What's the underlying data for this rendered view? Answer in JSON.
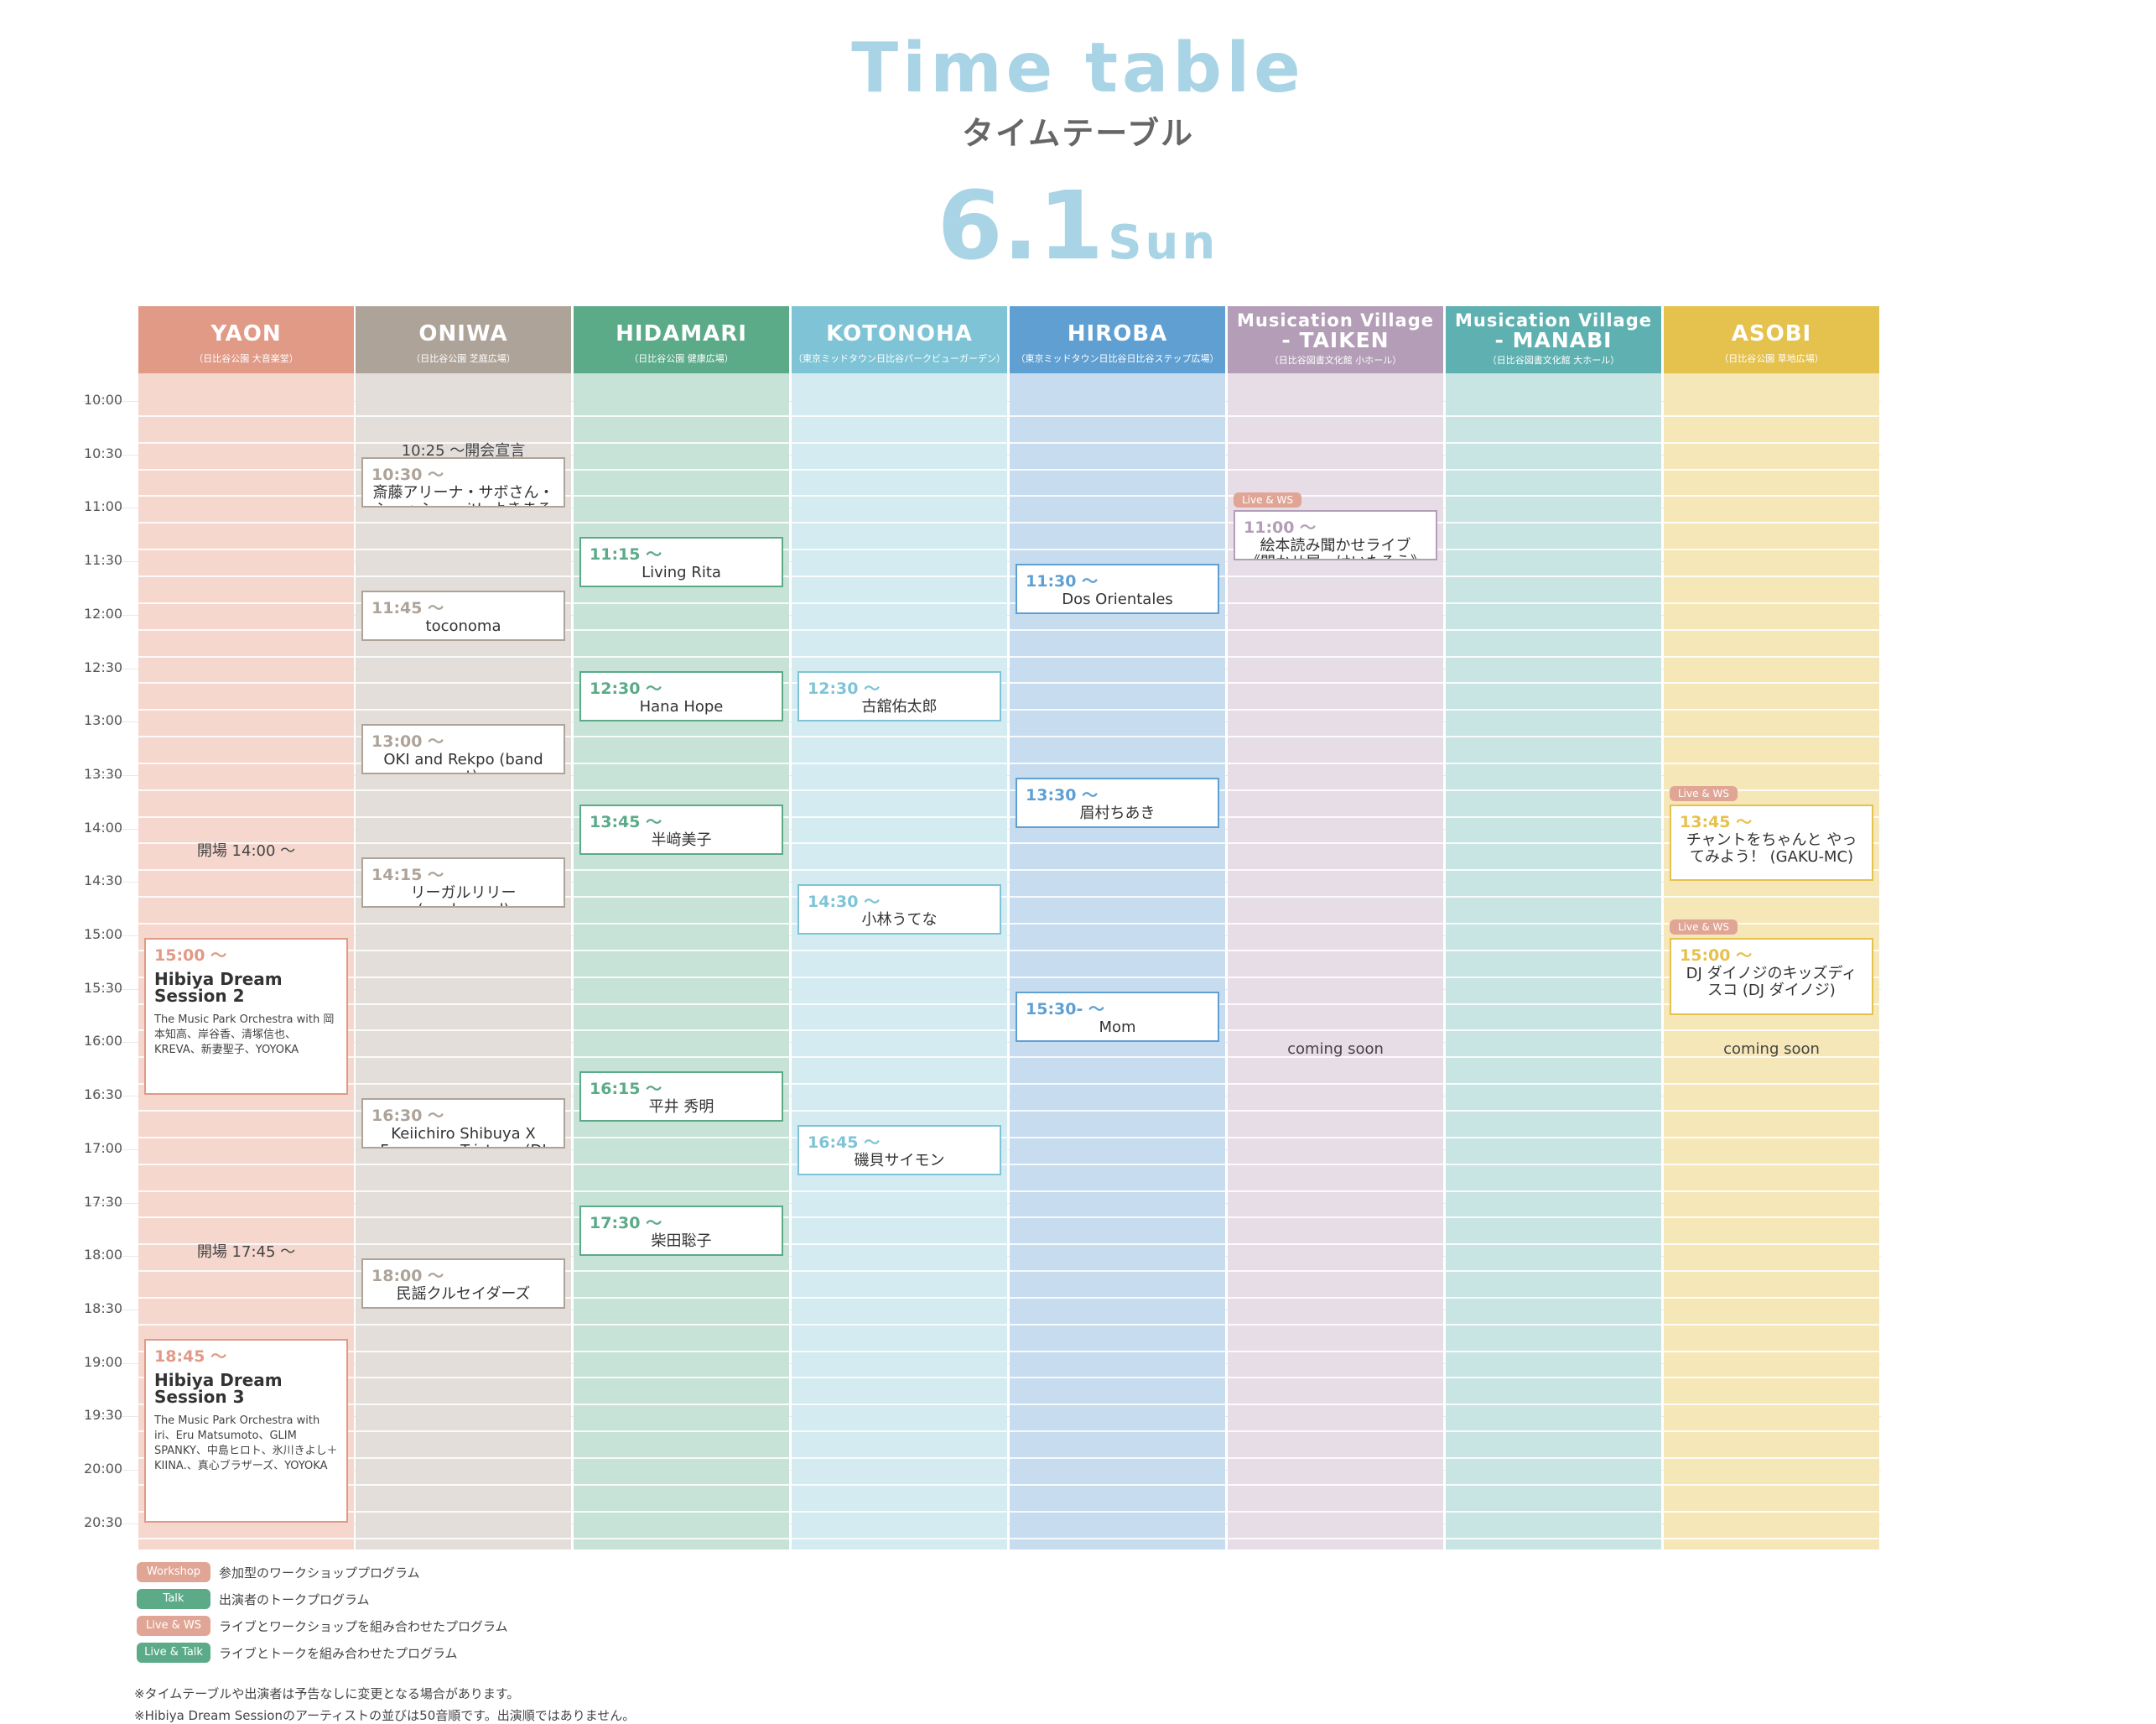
{
  "header": {
    "title_en": "Time table",
    "title_ja": "タイムテーブル",
    "date_num": "6.1",
    "date_dow": "Sun"
  },
  "times": [
    "10:00",
    "10:30",
    "11:00",
    "11:30",
    "12:00",
    "12:30",
    "13:00",
    "13:30",
    "14:00",
    "14:30",
    "15:00",
    "15:30",
    "16:00",
    "16:30",
    "17:00",
    "17:30",
    "18:00",
    "18:30",
    "19:00",
    "19:30",
    "20:00",
    "20:30"
  ],
  "stages": [
    {
      "id": "yaon",
      "name": "YAON",
      "sub": "（日比谷公園 大音楽堂）",
      "head": "#e09a86",
      "body": "#f5d7ce"
    },
    {
      "id": "oniwa",
      "name": "ONIWA",
      "sub": "（日比谷公園 芝庭広場）",
      "head": "#aea398",
      "body": "#e4dedb"
    },
    {
      "id": "hidamari",
      "name": "HIDAMARI",
      "sub": "（日比谷公園 健康広場）",
      "head": "#5baa88",
      "body": "#c7e2d7"
    },
    {
      "id": "kotonoha",
      "name": "KOTONOHA",
      "sub": "（東京ミッドタウン日比谷パークビューガーデン）",
      "head": "#7ec4d6",
      "body": "#d3ebf1"
    },
    {
      "id": "hiroba",
      "name": "HIROBA",
      "sub": "（東京ミッドタウン日比谷日比谷ステップ広場）",
      "head": "#5f9fd2",
      "body": "#c8dcef"
    },
    {
      "id": "taiken",
      "name": "Musication Village",
      "name2": "- TAIKEN",
      "sub": "（日比谷図書文化館 小ホール）",
      "head": "#b39db7",
      "body": "#e7dde7"
    },
    {
      "id": "manabi",
      "name": "Musication Village",
      "name2": "- MANABI",
      "sub": "（日比谷図書文化館 大ホール）",
      "head": "#5fb1b1",
      "body": "#c8e4e3"
    },
    {
      "id": "asobi",
      "name": "ASOBI",
      "sub": "（日比谷公園 草地広場）",
      "head": "#e5c14d",
      "body": "#f5e7b8"
    }
  ],
  "events": [
    {
      "stage": 1,
      "start": "10:30",
      "end": "10:45",
      "time": "10:30 〜",
      "name": "斎藤アリーナ・サボさん・シュッシュ with よきまるバンド",
      "color": "#aea398"
    },
    {
      "stage": 1,
      "start": "11:45",
      "end": "12:00",
      "time": "11:45 〜",
      "name": "toconoma",
      "color": "#aea398"
    },
    {
      "stage": 1,
      "start": "13:00",
      "end": "13:15",
      "time": "13:00 〜",
      "name": "OKI and Rekpo (band set)",
      "color": "#aea398"
    },
    {
      "stage": 1,
      "start": "14:15",
      "end": "14:30",
      "time": "14:15 〜",
      "name": "リーガルリリー (unplugged)",
      "color": "#aea398"
    },
    {
      "stage": 1,
      "start": "16:30",
      "end": "16:45",
      "time": "16:30 〜",
      "name": "Keiichiro Shibuya X Francesco Tristano (DJ set)",
      "color": "#aea398"
    },
    {
      "stage": 1,
      "start": "18:00",
      "end": "18:15",
      "time": "18:00 〜",
      "name": "民謡クルセイダーズ",
      "color": "#aea398"
    },
    {
      "stage": 2,
      "start": "11:15",
      "end": "11:30",
      "time": "11:15 〜",
      "name": "Living Rita",
      "color": "#5baa88"
    },
    {
      "stage": 2,
      "start": "12:30",
      "end": "12:45",
      "time": "12:30 〜",
      "name": "Hana Hope",
      "color": "#5baa88"
    },
    {
      "stage": 2,
      "start": "13:45",
      "end": "14:00",
      "time": "13:45 〜",
      "name": "半﨑美子",
      "color": "#5baa88"
    },
    {
      "stage": 2,
      "start": "16:15",
      "end": "16:30",
      "time": "16:15 〜",
      "name": "平井 秀明",
      "color": "#5baa88"
    },
    {
      "stage": 2,
      "start": "17:30",
      "end": "17:45",
      "time": "17:30 〜",
      "name": "柴田聡子",
      "color": "#5baa88"
    },
    {
      "stage": 3,
      "start": "12:30",
      "end": "12:45",
      "time": "12:30 〜",
      "name": "古舘佑太郎",
      "color": "#7ec4d6"
    },
    {
      "stage": 3,
      "start": "14:30",
      "end": "14:45",
      "time": "14:30 〜",
      "name": "小林うてな",
      "color": "#7ec4d6"
    },
    {
      "stage": 3,
      "start": "16:45",
      "end": "17:00",
      "time": "16:45 〜",
      "name": "磯貝サイモン",
      "color": "#7ec4d6"
    },
    {
      "stage": 4,
      "start": "11:30",
      "end": "11:45",
      "time": "11:30 〜",
      "name": "Dos Orientales",
      "color": "#5f9fd2"
    },
    {
      "stage": 4,
      "start": "13:30",
      "end": "13:45",
      "time": "13:30 〜",
      "name": "眉村ちあき",
      "color": "#5f9fd2"
    },
    {
      "stage": 4,
      "start": "15:30",
      "end": "15:45",
      "time": "15:30- 〜",
      "name": "Mom",
      "color": "#5f9fd2"
    },
    {
      "stage": 5,
      "start": "11:00",
      "end": "11:15",
      "time": "11:00 〜",
      "name": "絵本読み聞かせライブ 《聞かせ屋。けいたろう》",
      "color": "#b39db7"
    },
    {
      "stage": 7,
      "start": "13:45",
      "end": "14:15",
      "time": "13:45 〜",
      "name": "チャントをちゃんと やってみよう！ (GAKU-MC)",
      "color": "#e5c14d"
    },
    {
      "stage": 7,
      "start": "15:00",
      "end": "15:30",
      "time": "15:00 〜",
      "name": "DJ ダイノジのキッズディスコ (DJ ダイノジ)",
      "color": "#e5c14d"
    }
  ],
  "big_events": [
    {
      "stage": 0,
      "start": "15:00",
      "end": "16:15",
      "time": "15:00 〜",
      "name": "Hibiya Dream Session 2",
      "desc": "The Music Park Orchestra with 岡本知高、岸谷香、清塚信也、KREVA、新妻聖子、YOYOKA",
      "color": "#e09a86"
    },
    {
      "stage": 0,
      "start": "18:45",
      "end": "20:15",
      "time": "18:45 〜",
      "name": "Hibiya Dream Session 3",
      "desc": "The Music Park Orchestra with iri、Eru Matsumoto、GLIM SPANKY、中島ヒロト、氷川きよし＋KIINA.、真心ブラザーズ、YOYOKA",
      "color": "#e09a86"
    }
  ],
  "notes": [
    {
      "stage": 1,
      "at": "10:22",
      "text": "10:25 〜開会宣言"
    },
    {
      "stage": 0,
      "at": "14:07",
      "text": "開場 14:00 〜"
    },
    {
      "stage": 0,
      "at": "17:52",
      "text": "開場 17:45 〜"
    },
    {
      "stage": 5,
      "at": "16:00",
      "text": "coming soon"
    },
    {
      "stage": 7,
      "at": "16:00",
      "text": "coming soon"
    }
  ],
  "tags": [
    {
      "stage": 5,
      "at": "10:53",
      "text": "Live & WS",
      "color": "#e0a595"
    },
    {
      "stage": 7,
      "at": "13:38",
      "text": "Live & WS",
      "color": "#e0a595"
    },
    {
      "stage": 7,
      "at": "14:53",
      "text": "Live & WS",
      "color": "#e0a595"
    }
  ],
  "legend": [
    {
      "badge": "Workshop",
      "text": "参加型のワークショッププログラム",
      "color": "#e0a595"
    },
    {
      "badge": "Talk",
      "text": "出演者のトークプログラム",
      "color": "#5baa88"
    },
    {
      "badge": "Live & WS",
      "text": "ライブとワークショップを組み合わせたプログラム",
      "color": "#e0a595"
    },
    {
      "badge": "Live & Talk",
      "text": "ライブとトークを組み合わせたプログラム",
      "color": "#5baa88"
    }
  ],
  "footnotes": [
    "※タイムテーブルや出演者は予告なしに変更となる場合があります。",
    "※Hibiya Dream Sessionのアーティストの並びは50音順です。出演順ではありません。"
  ]
}
